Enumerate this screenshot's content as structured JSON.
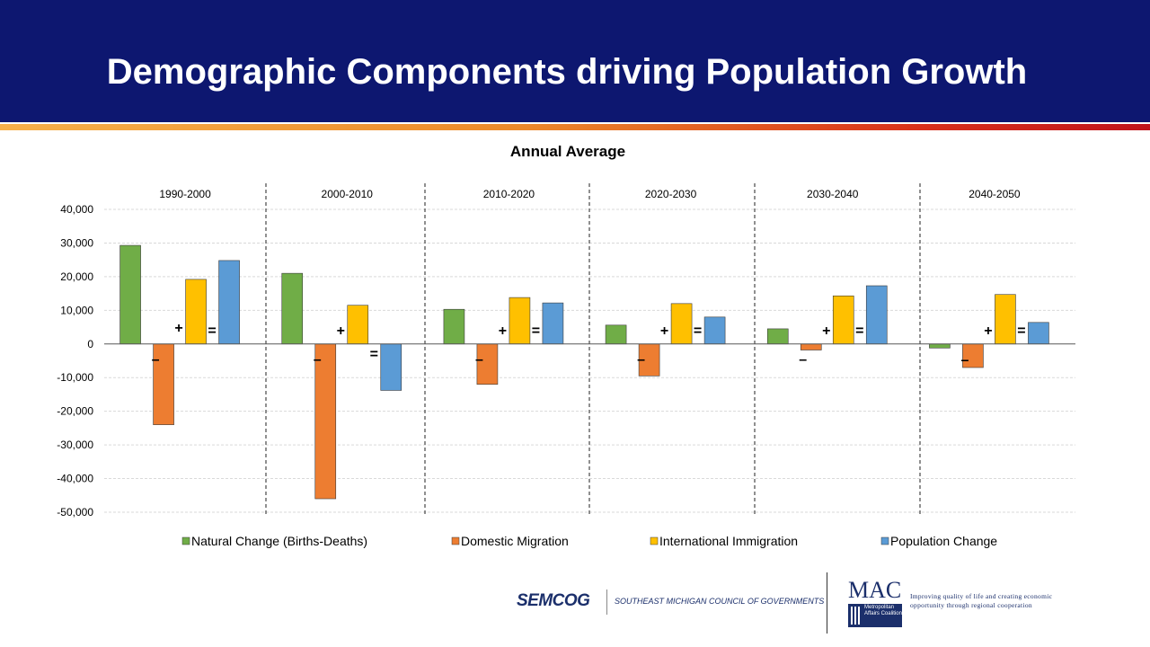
{
  "slide": {
    "title": "Demographic Components driving Population Growth"
  },
  "colors": {
    "header_bg": "#0d1770",
    "grid": "#d9d9d9",
    "natural": "#70ad47",
    "domestic": "#ed7d31",
    "international": "#ffc000",
    "population": "#5b9bd5"
  },
  "chart_data": {
    "type": "bar",
    "title": "Annual Average",
    "categories": [
      "1990-2000",
      "2000-2010",
      "2010-2020",
      "2020-2030",
      "2030-2040",
      "2040-2050"
    ],
    "series": [
      {
        "name": "Natural Change (Births-Deaths)",
        "values": [
          29300,
          21000,
          10300,
          5600,
          4500,
          -1200
        ]
      },
      {
        "name": "Domestic Migration",
        "values": [
          -24000,
          -46000,
          -12000,
          -9500,
          -1800,
          -7000
        ]
      },
      {
        "name": "International Immigration",
        "values": [
          19200,
          11500,
          13800,
          12000,
          14300,
          14700
        ]
      },
      {
        "name": "Population Change",
        "values": [
          24800,
          -13800,
          12200,
          8000,
          17300,
          6400
        ]
      }
    ],
    "operator_symbols": [
      "–",
      "+",
      "="
    ],
    "ylim": [
      -50000,
      40000
    ],
    "yticks": [
      40000,
      30000,
      20000,
      10000,
      0,
      -10000,
      -20000,
      -30000,
      -40000,
      -50000
    ],
    "ytick_labels": [
      "40,000",
      "30,000",
      "20,000",
      "10,000",
      "0",
      "-10,000",
      "-20,000",
      "-30,000",
      "-40,000",
      "-50,000"
    ],
    "xlabel": "",
    "ylabel": "",
    "grid": true,
    "legend_position": "bottom"
  },
  "footer": {
    "semcog_logo": "SEMCOG",
    "semcog_name": "SOUTHEAST MICHIGAN COUNCIL OF GOVERNMENTS",
    "mac_logo": "MAC",
    "mac_name": "Metropolitan Affairs Coalition",
    "mac_tagline": "Improving quality of life and creating economic opportunity through regional cooperation"
  }
}
